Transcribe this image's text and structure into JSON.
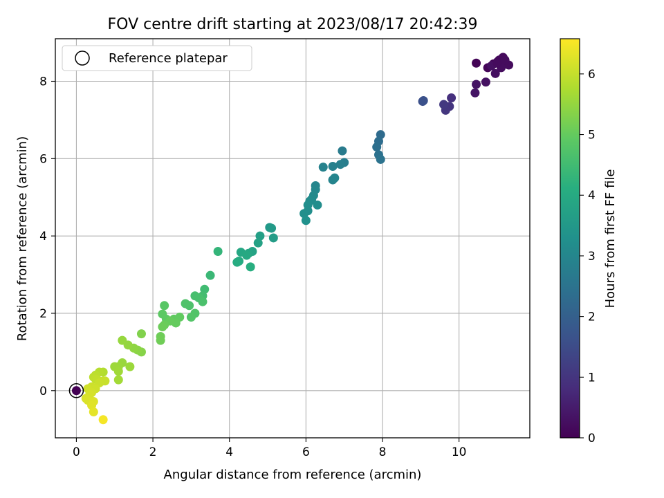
{
  "chart_data": {
    "type": "scatter",
    "title": "FOV centre drift starting at 2023/08/17 20:42:39",
    "xlabel": "Angular distance from reference (arcmin)",
    "ylabel": "Rotation from reference (arcmin)",
    "xlim": [
      -0.55,
      11.85
    ],
    "ylim": [
      -1.22,
      9.1
    ],
    "xticks": [
      "0",
      "2",
      "4",
      "6",
      "8",
      "10"
    ],
    "yticks": [
      "0",
      "2",
      "4",
      "6",
      "8"
    ],
    "grid": true,
    "legend": {
      "placement": "top-left",
      "entries": [
        "Reference platepar"
      ]
    },
    "colorbar": {
      "label": "Hours from first FF file",
      "range": [
        0,
        6.58
      ],
      "ticks": [
        "0",
        "1",
        "2",
        "3",
        "4",
        "5",
        "6"
      ],
      "colormap": "viridis"
    },
    "reference_point": {
      "x": 0,
      "y": 0,
      "hours": 0
    },
    "points": [
      [
        10.45,
        8.47,
        0.05
      ],
      [
        10.75,
        8.35,
        0.08
      ],
      [
        10.9,
        8.45,
        0.1
      ],
      [
        11.0,
        8.5,
        0.12
      ],
      [
        11.05,
        8.55,
        0.14
      ],
      [
        11.15,
        8.62,
        0.16
      ],
      [
        11.2,
        8.45,
        0.18
      ],
      [
        11.3,
        8.42,
        0.2
      ],
      [
        11.1,
        8.35,
        0.22
      ],
      [
        10.95,
        8.2,
        0.25
      ],
      [
        10.85,
        8.4,
        0.28
      ],
      [
        10.7,
        7.98,
        0.3
      ],
      [
        10.45,
        7.92,
        0.33
      ],
      [
        10.42,
        7.7,
        0.36
      ],
      [
        11.0,
        8.47,
        0.18
      ],
      [
        11.2,
        8.55,
        0.2
      ],
      [
        9.8,
        7.57,
        0.9
      ],
      [
        9.75,
        7.35,
        1.0
      ],
      [
        9.65,
        7.25,
        1.05
      ],
      [
        9.6,
        7.4,
        1.1
      ],
      [
        9.05,
        7.48,
        1.6
      ],
      [
        9.07,
        7.5,
        1.62
      ],
      [
        7.95,
        6.62,
        2.3
      ],
      [
        7.9,
        6.45,
        2.35
      ],
      [
        7.85,
        6.3,
        2.4
      ],
      [
        7.9,
        6.1,
        2.45
      ],
      [
        7.95,
        5.98,
        2.5
      ],
      [
        6.95,
        6.2,
        2.7
      ],
      [
        7.0,
        5.9,
        2.75
      ],
      [
        6.9,
        5.85,
        2.8
      ],
      [
        6.7,
        5.8,
        2.85
      ],
      [
        6.45,
        5.78,
        2.9
      ],
      [
        6.7,
        5.45,
        2.95
      ],
      [
        6.75,
        5.5,
        2.98
      ],
      [
        6.25,
        5.3,
        3.0
      ],
      [
        6.25,
        5.2,
        3.05
      ],
      [
        6.2,
        5.05,
        3.1
      ],
      [
        6.15,
        4.95,
        3.12
      ],
      [
        6.1,
        4.9,
        3.15
      ],
      [
        6.3,
        4.8,
        3.18
      ],
      [
        6.05,
        4.8,
        3.2
      ],
      [
        6.05,
        4.65,
        3.22
      ],
      [
        5.95,
        4.58,
        3.25
      ],
      [
        6.0,
        4.4,
        3.3
      ],
      [
        5.05,
        4.22,
        3.5
      ],
      [
        5.1,
        4.2,
        3.55
      ],
      [
        5.15,
        3.95,
        3.6
      ],
      [
        4.8,
        4.0,
        3.7
      ],
      [
        4.75,
        3.82,
        3.75
      ],
      [
        4.6,
        3.6,
        3.8
      ],
      [
        4.5,
        3.55,
        3.85
      ],
      [
        4.3,
        3.58,
        3.9
      ],
      [
        4.45,
        3.5,
        3.95
      ],
      [
        4.25,
        3.35,
        4.0
      ],
      [
        4.2,
        3.32,
        4.05
      ],
      [
        4.55,
        3.2,
        4.1
      ],
      [
        3.7,
        3.6,
        4.3
      ],
      [
        3.5,
        2.98,
        4.4
      ],
      [
        3.35,
        2.62,
        4.5
      ],
      [
        3.3,
        2.45,
        4.55
      ],
      [
        3.1,
        2.45,
        4.6
      ],
      [
        3.2,
        2.4,
        4.62
      ],
      [
        3.3,
        2.3,
        4.65
      ],
      [
        2.95,
        2.2,
        4.7
      ],
      [
        2.85,
        2.25,
        4.72
      ],
      [
        3.1,
        2.0,
        4.75
      ],
      [
        3.0,
        1.9,
        4.78
      ],
      [
        2.3,
        2.2,
        4.85
      ],
      [
        2.25,
        1.98,
        4.9
      ],
      [
        2.35,
        1.85,
        4.92
      ],
      [
        2.55,
        1.85,
        4.95
      ],
      [
        2.7,
        1.9,
        4.97
      ],
      [
        2.6,
        1.75,
        5.0
      ],
      [
        2.45,
        1.8,
        5.02
      ],
      [
        2.3,
        1.7,
        5.05
      ],
      [
        2.25,
        1.65,
        5.08
      ],
      [
        2.2,
        1.4,
        5.1
      ],
      [
        2.2,
        1.3,
        5.12
      ],
      [
        1.7,
        1.47,
        5.3
      ],
      [
        1.7,
        1.0,
        5.35
      ],
      [
        1.6,
        1.05,
        5.4
      ],
      [
        1.5,
        1.1,
        5.45
      ],
      [
        1.35,
        1.18,
        5.5
      ],
      [
        1.2,
        1.3,
        5.52
      ],
      [
        1.2,
        0.72,
        5.55
      ],
      [
        1.1,
        0.62,
        5.58
      ],
      [
        1.0,
        0.62,
        5.6
      ],
      [
        1.1,
        0.5,
        5.62
      ],
      [
        1.4,
        0.62,
        5.57
      ],
      [
        1.1,
        0.28,
        5.65
      ],
      [
        0.7,
        0.48,
        5.8
      ],
      [
        0.6,
        0.48,
        5.85
      ],
      [
        0.5,
        0.4,
        5.9
      ],
      [
        0.45,
        0.35,
        5.92
      ],
      [
        0.5,
        0.3,
        5.95
      ],
      [
        0.55,
        0.28,
        5.97
      ],
      [
        0.7,
        0.25,
        6.0
      ],
      [
        0.75,
        0.25,
        6.02
      ],
      [
        0.6,
        0.2,
        6.05
      ],
      [
        0.4,
        0.1,
        6.08
      ],
      [
        0.5,
        0.05,
        6.1
      ],
      [
        0.3,
        0.05,
        6.12
      ],
      [
        0.4,
        -0.05,
        6.15
      ],
      [
        0.35,
        -0.1,
        6.18
      ],
      [
        0.25,
        -0.2,
        6.2
      ],
      [
        0.3,
        -0.25,
        6.22
      ],
      [
        0.45,
        -0.28,
        6.25
      ],
      [
        0.4,
        -0.38,
        6.28
      ],
      [
        0.45,
        -0.55,
        6.32
      ],
      [
        0.7,
        -0.75,
        6.5
      ]
    ]
  }
}
